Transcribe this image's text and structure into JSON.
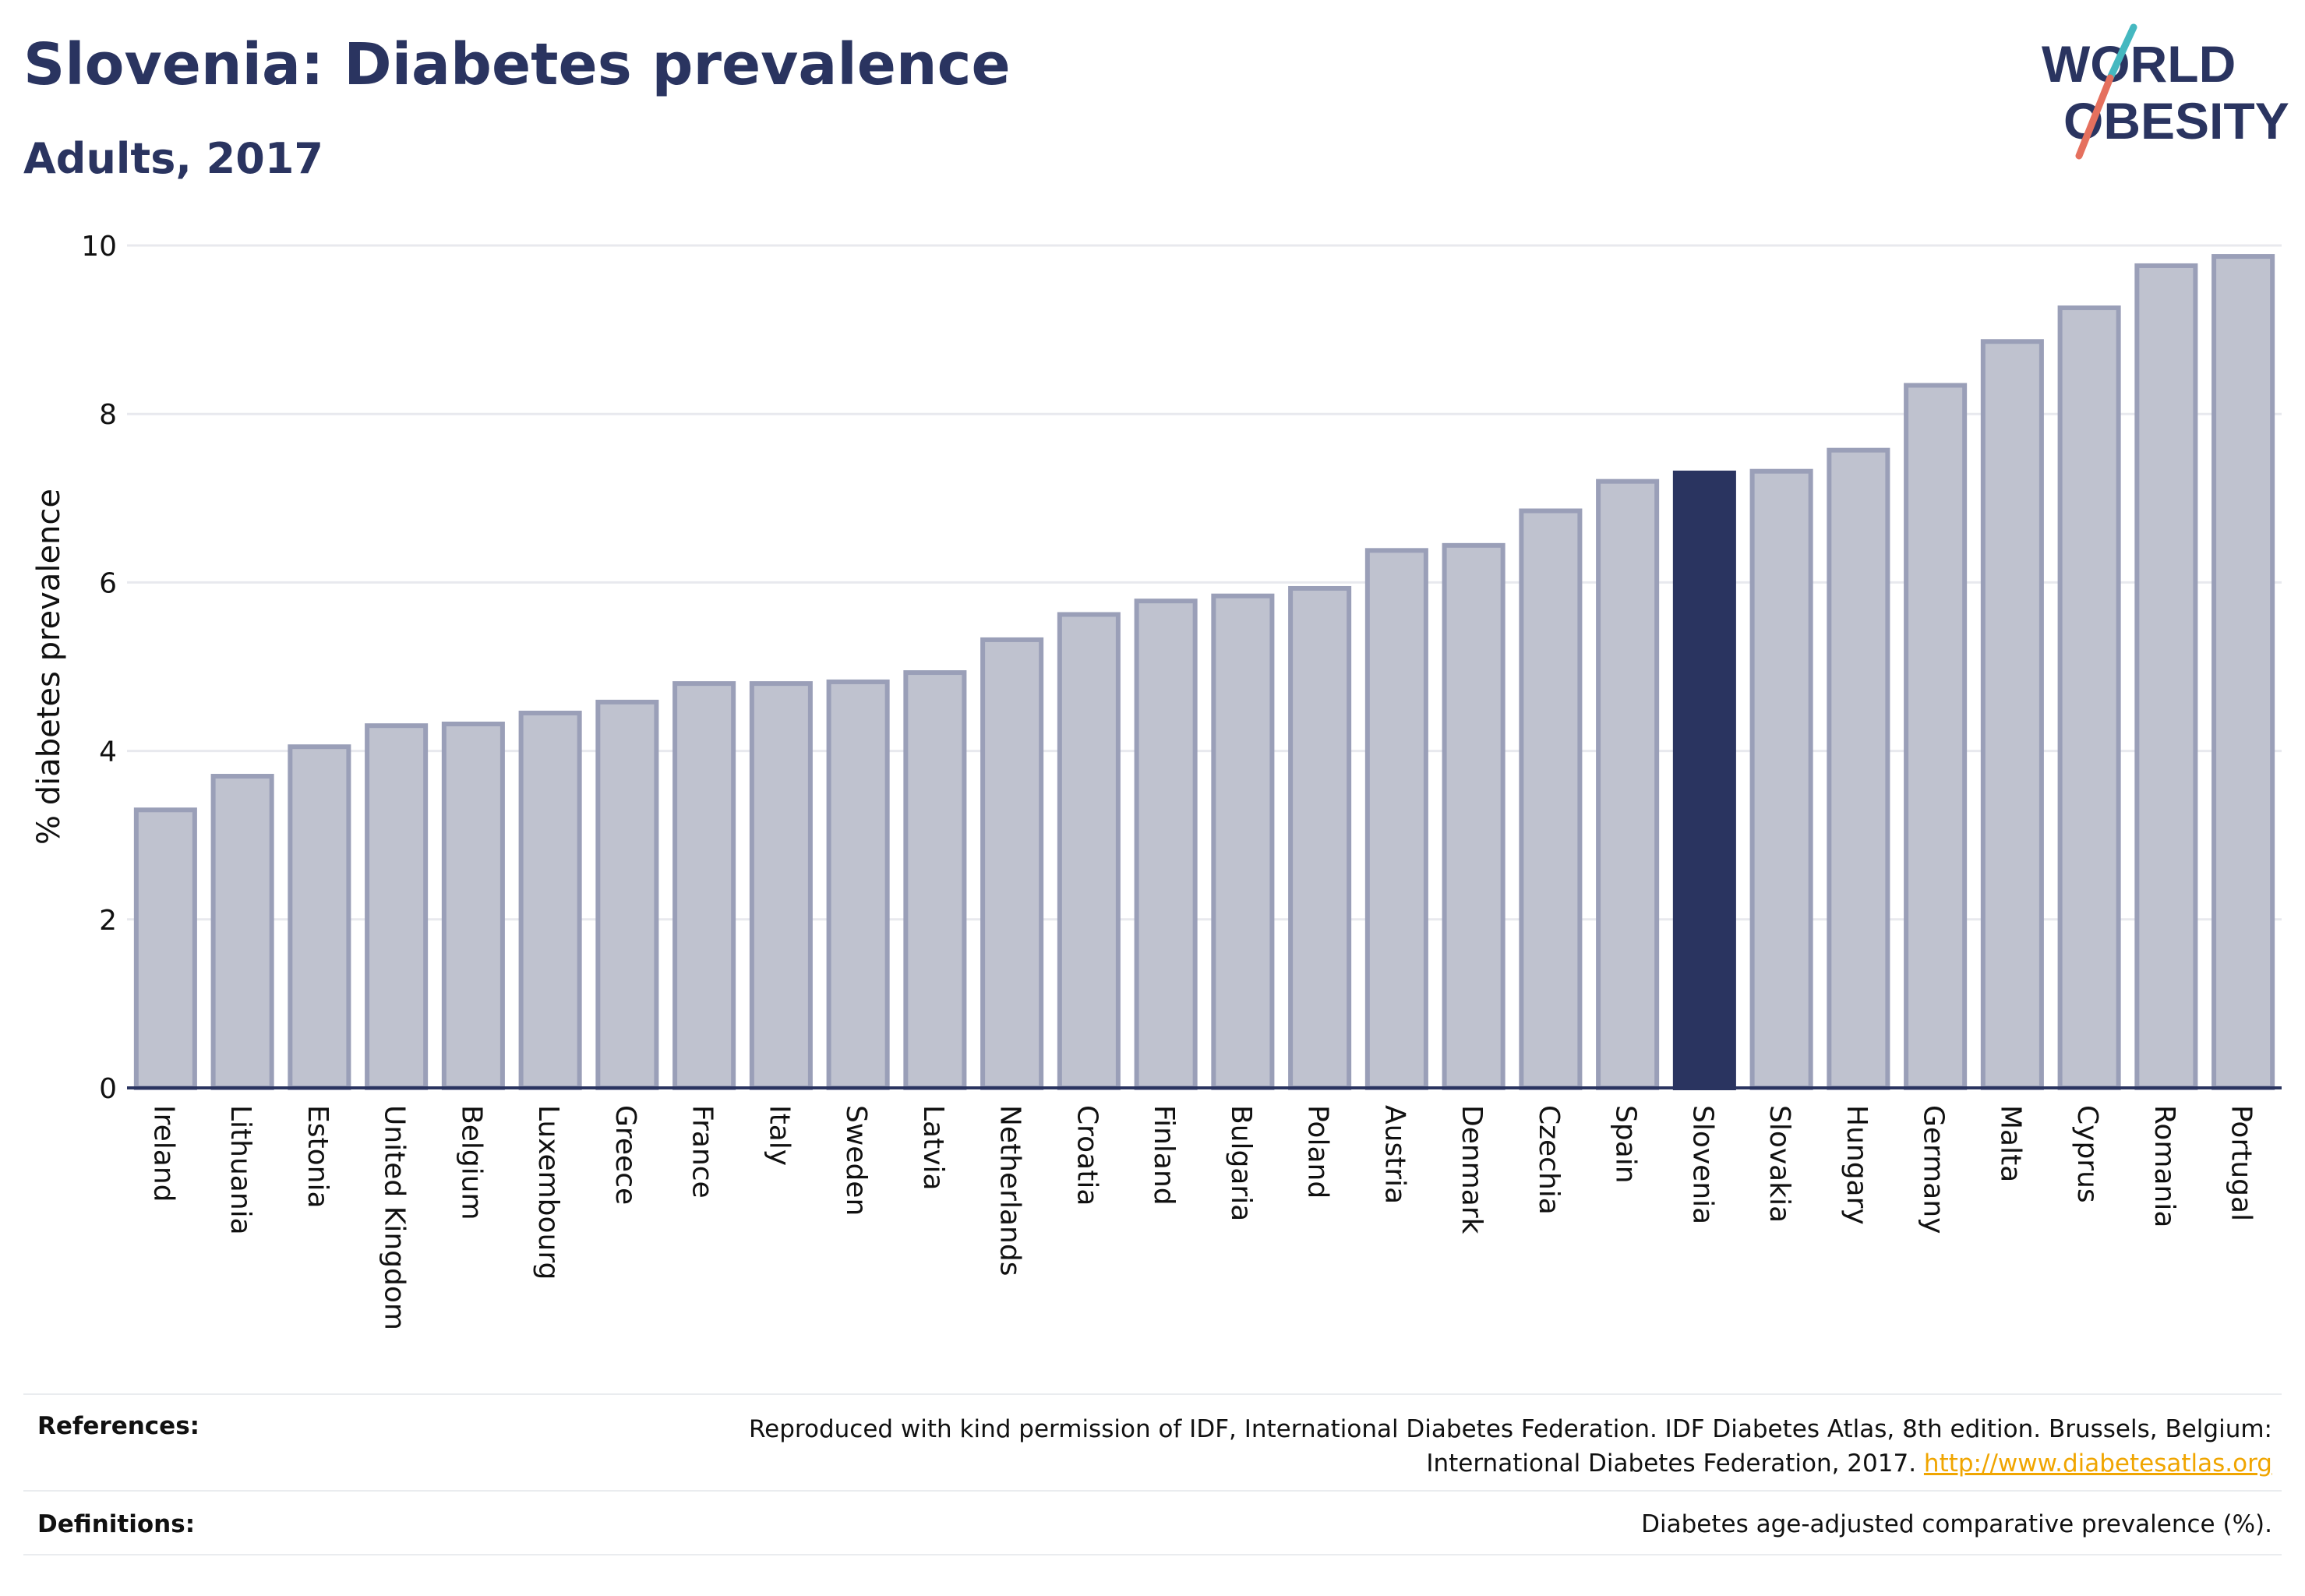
{
  "header": {
    "title": "Slovenia: Diabetes prevalence",
    "subtitle": "Adults, 2017"
  },
  "logo": {
    "line1": "WORLD",
    "line2": "OBESITY",
    "accent_colors": [
      "#45b8c0",
      "#e5705e"
    ]
  },
  "chart_data": {
    "type": "bar",
    "title": "Slovenia: Diabetes prevalence",
    "subtitle": "Adults, 2017",
    "xlabel": "",
    "ylabel": "% diabetes prevalence",
    "ylim": [
      0,
      10
    ],
    "yticks": [
      0,
      2,
      4,
      6,
      8,
      10
    ],
    "grid": true,
    "highlight": "Slovenia",
    "colors": {
      "bar": "#bfc2cf",
      "bar_border": "#9a9fb8",
      "highlight": "#2a3460",
      "grid": "#e8e9ee"
    },
    "categories": [
      "Ireland",
      "Lithuania",
      "Estonia",
      "United Kingdom",
      "Belgium",
      "Luxembourg",
      "Greece",
      "France",
      "Italy",
      "Sweden",
      "Latvia",
      "Netherlands",
      "Croatia",
      "Finland",
      "Bulgaria",
      "Poland",
      "Austria",
      "Denmark",
      "Czechia",
      "Spain",
      "Slovenia",
      "Slovakia",
      "Hungary",
      "Germany",
      "Malta",
      "Cyprus",
      "Romania",
      "Portugal"
    ],
    "values": [
      3.3,
      3.7,
      4.05,
      4.3,
      4.32,
      4.45,
      4.58,
      4.8,
      4.8,
      4.82,
      4.93,
      5.32,
      5.62,
      5.78,
      5.84,
      5.93,
      6.38,
      6.44,
      6.85,
      7.2,
      7.3,
      7.32,
      7.57,
      8.34,
      8.86,
      9.26,
      9.76,
      9.87
    ]
  },
  "footer": {
    "references_label": "References:",
    "references_text_1": "Reproduced with kind permission of IDF, International Diabetes Federation. IDF Diabetes Atlas, 8th edition. Brussels, Belgium:",
    "references_text_2": "International Diabetes Federation, 2017.",
    "references_link": "http://www.diabetesatlas.org",
    "definitions_label": "Definitions:",
    "definitions_text": "Diabetes age-adjusted comparative prevalence (%)."
  }
}
